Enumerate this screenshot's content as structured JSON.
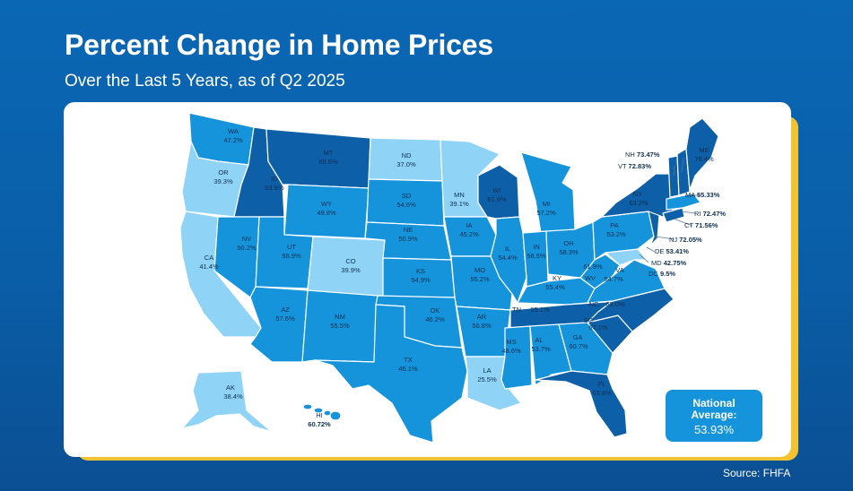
{
  "title": "Percent Change in Home Prices",
  "subtitle": "Over the Last 5 Years, as of Q2 2025",
  "source": "Source: FHFA",
  "national": {
    "label": "National Average:",
    "value": "53.93%"
  },
  "legend_colors": {
    "light": "#8fd3f6",
    "mid": "#1594dc",
    "dark": "#0d5fa8"
  },
  "states": [
    {
      "abbr": "WA",
      "value": "47.2%"
    },
    {
      "abbr": "OR",
      "value": "39.3%"
    },
    {
      "abbr": "CA",
      "value": "41.4%"
    },
    {
      "abbr": "ID",
      "value": "63.8%"
    },
    {
      "abbr": "NV",
      "value": "50.2%"
    },
    {
      "abbr": "MT",
      "value": "69.6%"
    },
    {
      "abbr": "WY",
      "value": "49.8%"
    },
    {
      "abbr": "UT",
      "value": "56.9%"
    },
    {
      "abbr": "AZ",
      "value": "57.6%"
    },
    {
      "abbr": "CO",
      "value": "39.9%"
    },
    {
      "abbr": "NM",
      "value": "55.5%"
    },
    {
      "abbr": "ND",
      "value": "37.0%"
    },
    {
      "abbr": "SD",
      "value": "54.6%"
    },
    {
      "abbr": "NE",
      "value": "50.9%"
    },
    {
      "abbr": "KS",
      "value": "54.9%"
    },
    {
      "abbr": "OK",
      "value": "46.2%"
    },
    {
      "abbr": "TX",
      "value": "46.1%"
    },
    {
      "abbr": "MN",
      "value": "39.1%"
    },
    {
      "abbr": "IA",
      "value": "45.2%"
    },
    {
      "abbr": "MO",
      "value": "55.2%"
    },
    {
      "abbr": "AR",
      "value": "56.8%"
    },
    {
      "abbr": "LA",
      "value": "25.5%"
    },
    {
      "abbr": "WI",
      "value": "61.6%"
    },
    {
      "abbr": "IL",
      "value": "54.4%"
    },
    {
      "abbr": "MI",
      "value": "57.2%"
    },
    {
      "abbr": "IN",
      "value": "56.5%"
    },
    {
      "abbr": "OH",
      "value": "58.3%"
    },
    {
      "abbr": "KY",
      "value": "55.4%"
    },
    {
      "abbr": "TN",
      "value": "65.1%"
    },
    {
      "abbr": "MS",
      "value": "48.6%"
    },
    {
      "abbr": "AL",
      "value": "53.7%"
    },
    {
      "abbr": "GA",
      "value": "60.7%"
    },
    {
      "abbr": "FL",
      "value": "63.8%"
    },
    {
      "abbr": "SC",
      "value": "67.1%"
    },
    {
      "abbr": "NC",
      "value": "68.0%"
    },
    {
      "abbr": "VA",
      "value": "54.7%"
    },
    {
      "abbr": "WV",
      "value": "61.9%"
    },
    {
      "abbr": "PA",
      "value": "53.2%"
    },
    {
      "abbr": "NY",
      "value": "63.2%"
    },
    {
      "abbr": "ME",
      "value": "78.4%"
    },
    {
      "abbr": "AK",
      "value": "38.4%"
    },
    {
      "abbr": "HI",
      "value": "60.72%"
    }
  ],
  "callouts": [
    {
      "abbr": "NH",
      "value": "73.47%"
    },
    {
      "abbr": "VT",
      "value": "72.83%"
    },
    {
      "abbr": "MA",
      "value": "55.33%"
    },
    {
      "abbr": "RI",
      "value": "72.47%"
    },
    {
      "abbr": "CT",
      "value": "71.56%"
    },
    {
      "abbr": "NJ",
      "value": "72.05%"
    },
    {
      "abbr": "DE",
      "value": "53.41%"
    },
    {
      "abbr": "MD",
      "value": "42.75%"
    },
    {
      "abbr": "DC",
      "value": "9.5%"
    }
  ]
}
